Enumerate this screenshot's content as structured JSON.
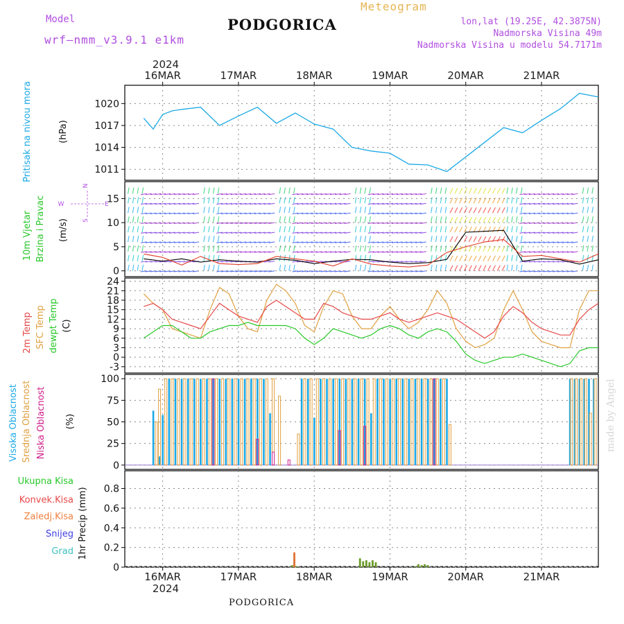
{
  "header": {
    "model_label": "Model",
    "model_name": "wrf–nmm_v3.9.1 e1km",
    "city": "PODGORICA",
    "meteogram": "Meteogram",
    "coords": "lon,lat (19.25E, 42.3875N)",
    "altitude": "Nadmorska Visina 49m",
    "model_altitude": "Nadmorska Visina u modelu 54.7171m",
    "year": "2024",
    "footer_city": "PODGORICA",
    "watermark": "made by Angel"
  },
  "time_axis": {
    "labels": [
      "16MAR",
      "17MAR",
      "18MAR",
      "19MAR",
      "20MAR",
      "21MAR"
    ],
    "year_label": "2024"
  },
  "colors": {
    "pressure": "#1ca9e6",
    "wind_speed": "#000000",
    "gust": "#e03c28",
    "temp2m": "#e84848",
    "sfc_temp": "#e0a040",
    "dewpoint": "#28c828",
    "cloud_high": "#1ca9e6",
    "cloud_mid": "#e0a040",
    "cloud_low": "#d0208a",
    "precip_total": "#28c828",
    "precip_conv": "#e84848",
    "precip_strat": "#f08040",
    "snow": "#4040e0",
    "hail": "#40c0c0"
  },
  "chart_data": [
    {
      "type": "line",
      "panel": "pressure",
      "ylabel_lines": [
        "Pritisak na nivou mora",
        "(hPa)"
      ],
      "yticks": [
        1011,
        1014,
        1017,
        1020
      ],
      "ylim": [
        1009.5,
        1022.5
      ],
      "x_hours": [
        0,
        3,
        6,
        9,
        12,
        18,
        24,
        30,
        36,
        42,
        48,
        54,
        60,
        66,
        72,
        78,
        84,
        90,
        96,
        102,
        108,
        114,
        120,
        126,
        132,
        138,
        144
      ],
      "series": [
        {
          "values": [
            1018.0,
            1016.5,
            1018.5,
            1019.0,
            1019.2,
            1019.5,
            1017.0,
            1018.3,
            1019.5,
            1017.3,
            1018.7,
            1017.2,
            1016.5,
            1014.0,
            1013.5,
            1013.2,
            1011.7,
            1011.6,
            1010.7,
            1012.7,
            1014.7,
            1016.7,
            1016.0,
            1017.7,
            1019.3,
            1021.4,
            1020.9
          ]
        }
      ]
    },
    {
      "type": "line",
      "panel": "wind",
      "ylabel_lines": [
        "10m Vjetar",
        "Brzina i Pravac",
        "(m/s)"
      ],
      "compass": [
        "N",
        "W",
        "E",
        "S"
      ],
      "yticks": [
        0,
        5,
        10,
        15
      ],
      "ylim": [
        -1.2,
        18.5
      ],
      "x_hours": [
        0,
        6,
        12,
        18,
        24,
        30,
        36,
        42,
        48,
        54,
        60,
        66,
        72,
        78,
        84,
        90,
        96,
        102,
        108,
        114,
        120,
        126,
        132,
        138,
        144
      ],
      "series": [
        {
          "values": [
            2.5,
            2.0,
            2.5,
            1.8,
            2.3,
            2.0,
            1.8,
            2.5,
            2.2,
            1.5,
            2.0,
            2.4,
            2.3,
            1.8,
            1.5,
            1.7,
            2.4,
            8.0,
            8.2,
            8.4,
            2.0,
            2.5,
            2.3,
            1.4,
            2.3
          ]
        },
        {
          "values": [
            3.5,
            2.8,
            1.2,
            3.0,
            1.5,
            1.3,
            1.5,
            3.0,
            2.5,
            2.0,
            1.0,
            2.5,
            1.4,
            1.0,
            0.8,
            1.2,
            3.8,
            5.0,
            6.0,
            6.5,
            3.0,
            3.2,
            2.5,
            1.8,
            3.5
          ]
        }
      ]
    },
    {
      "type": "line",
      "panel": "temperature",
      "ylabel_lines": [
        "2m Temp",
        "SFC Temp",
        "dewpt Temp",
        "(C)"
      ],
      "yticks": [
        -3,
        0,
        3,
        6,
        9,
        12,
        15,
        18,
        21,
        24
      ],
      "ylim": [
        -5,
        25
      ],
      "x_hours": [
        0,
        3,
        6,
        9,
        12,
        15,
        18,
        21,
        24,
        27,
        30,
        33,
        36,
        39,
        42,
        45,
        48,
        51,
        54,
        57,
        60,
        63,
        66,
        69,
        72,
        75,
        78,
        81,
        84,
        87,
        90,
        93,
        96,
        99,
        102,
        105,
        108,
        111,
        114,
        117,
        120,
        123,
        126,
        129,
        132,
        135,
        138,
        141,
        144
      ],
      "series": [
        {
          "values": [
            16,
            17,
            15,
            12,
            11,
            10,
            9,
            13,
            17,
            15,
            13,
            12,
            11,
            16,
            18,
            16,
            14,
            12,
            12,
            17,
            16,
            14,
            13,
            12,
            12,
            13,
            14,
            12,
            11,
            12,
            13,
            14,
            13,
            12,
            10,
            8,
            6,
            8,
            13,
            16,
            14,
            11,
            9,
            8,
            7,
            7,
            12,
            15,
            17
          ]
        },
        {
          "values": [
            20,
            17,
            15,
            9,
            8,
            7,
            6,
            15,
            22,
            20,
            13,
            9,
            8,
            18,
            23,
            21,
            17,
            10,
            8,
            16,
            21,
            20,
            13,
            9,
            9,
            13,
            16,
            12,
            9,
            11,
            15,
            21,
            17,
            9,
            5,
            3,
            4,
            6,
            15,
            21,
            15,
            8,
            5,
            4,
            3,
            3,
            15,
            21,
            21
          ]
        },
        {
          "values": [
            6,
            8,
            10,
            10,
            8,
            6,
            6,
            8,
            9,
            10,
            10,
            11,
            10,
            10,
            10,
            10,
            9,
            6,
            4,
            6,
            9,
            8,
            7,
            6,
            7,
            9,
            10,
            9,
            7,
            6,
            8,
            9,
            8,
            5,
            1,
            -1,
            -2,
            -1,
            0,
            0,
            1,
            0,
            -1,
            -2,
            -3,
            -2,
            2,
            3,
            3
          ]
        }
      ]
    },
    {
      "type": "bar",
      "panel": "cloudiness",
      "ylabel_lines": [
        "Visoka Oblacnost",
        "Srednja Oblacnost",
        "Niska Oblacnost",
        "(%)"
      ],
      "yticks": [
        0,
        25,
        50,
        75,
        100
      ],
      "ylim": [
        -5,
        105
      ],
      "series": [
        {
          "name": "Visoka Oblacnost",
          "hours": [
            3,
            5,
            6,
            8,
            10,
            12,
            14,
            16,
            18,
            20,
            22,
            24,
            26,
            28,
            30,
            32,
            34,
            36,
            38,
            40,
            50,
            52,
            54,
            56,
            58,
            60,
            62,
            64,
            66,
            68,
            70,
            72,
            74,
            76,
            78,
            80,
            82,
            84,
            86,
            88,
            90,
            92,
            94,
            96,
            135,
            136.5,
            138,
            139.5,
            141,
            142.5
          ],
          "values": [
            63,
            10,
            58,
            100,
            100,
            100,
            100,
            100,
            100,
            100,
            100,
            100,
            100,
            100,
            100,
            100,
            100,
            100,
            100,
            60,
            100,
            100,
            55,
            100,
            100,
            100,
            100,
            100,
            100,
            100,
            100,
            60,
            100,
            100,
            100,
            100,
            100,
            100,
            100,
            100,
            100,
            100,
            100,
            100,
            100,
            100,
            100,
            100,
            100,
            100
          ]
        },
        {
          "name": "Srednja Oblacnost",
          "hours": [
            4,
            5,
            7,
            9,
            11,
            13,
            15,
            17,
            19,
            21,
            23,
            25,
            27,
            29,
            31,
            33,
            35,
            37,
            39,
            41,
            43,
            49,
            51,
            53,
            55,
            57,
            59,
            61,
            63,
            65,
            67,
            69,
            71,
            73,
            75,
            77,
            79,
            81,
            83,
            85,
            87,
            89,
            91,
            93,
            95,
            97,
            135.5,
            137,
            138.5,
            140,
            141.5,
            143
          ],
          "values": [
            50,
            88,
            100,
            100,
            100,
            100,
            100,
            100,
            100,
            100,
            100,
            100,
            100,
            100,
            100,
            100,
            100,
            100,
            100,
            100,
            80,
            36,
            100,
            100,
            100,
            100,
            100,
            100,
            100,
            100,
            100,
            100,
            100,
            100,
            100,
            100,
            100,
            100,
            100,
            100,
            100,
            100,
            100,
            100,
            100,
            47,
            100,
            100,
            100,
            100,
            60,
            100
          ]
        },
        {
          "name": "Niska Oblacnost",
          "hours": [
            22,
            36,
            41,
            46,
            62,
            70,
            92
          ],
          "values": [
            100,
            30,
            15,
            6,
            40,
            45,
            100
          ]
        }
      ]
    },
    {
      "type": "bar",
      "panel": "precipitation",
      "ylabel_lines": [
        "1hr Precip (mm)"
      ],
      "legend": [
        "Ukupna Kisa",
        "Konvek.Kisa",
        "Zaledj.Kisa",
        "Snijeg",
        "Grad"
      ],
      "yticks": [
        0,
        0.2,
        0.4,
        0.6,
        0.8
      ],
      "ylim": [
        0,
        0.98
      ],
      "hours": [
        47,
        47.7,
        48.4,
        68.5,
        69.5,
        70.5,
        71.5,
        72.5,
        73.5,
        86,
        87,
        88,
        89,
        90
      ],
      "values": [
        0.02,
        0.15,
        0.01,
        0.09,
        0.06,
        0.07,
        0.05,
        0.07,
        0.05,
        0.01,
        0.03,
        0.02,
        0.03,
        0.02
      ]
    }
  ]
}
